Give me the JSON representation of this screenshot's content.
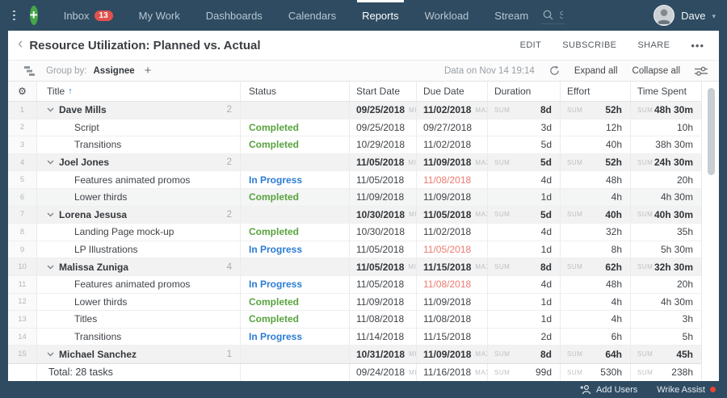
{
  "nav": {
    "items": [
      {
        "label": "Inbox",
        "badge": "13",
        "active": false
      },
      {
        "label": "My Work",
        "active": false
      },
      {
        "label": "Dashboards",
        "active": false
      },
      {
        "label": "Calendars",
        "active": false
      },
      {
        "label": "Reports",
        "active": true
      },
      {
        "label": "Workload",
        "active": false
      },
      {
        "label": "Stream",
        "active": false
      }
    ],
    "search_placeholder": "Search",
    "user_name": "Dave"
  },
  "header": {
    "back": "‹",
    "title": "Resource Utilization: Planned vs. Actual",
    "actions": [
      {
        "label": "EDIT"
      },
      {
        "label": "SUBSCRIBE"
      },
      {
        "label": "SHARE"
      }
    ],
    "more": "•••"
  },
  "toolbar": {
    "group_by_label": "Group by:",
    "group_by_value": "Assignee",
    "add_group": "+",
    "data_on": "Data on Nov 14 19:14",
    "expand_all": "Expand all",
    "collapse_all": "Collapse all"
  },
  "table": {
    "gear": "⚙",
    "sort_arrow": "↑",
    "columns": [
      "Title",
      "Status",
      "Start Date",
      "Due Date",
      "Duration",
      "Effort",
      "Time Spent"
    ],
    "tags": {
      "min": "MIN",
      "max": "MAX",
      "sum": "SUM"
    },
    "statuses": {
      "completed": "Completed",
      "inprogress": "In Progress"
    },
    "rows": [
      {
        "n": "1",
        "type": "g",
        "title": "Dave Mills",
        "count": "2",
        "start": "09/25/2018",
        "due": "11/02/2018",
        "dur": "8d",
        "eff": "52h",
        "time": "48h 30m"
      },
      {
        "n": "2",
        "type": "t",
        "title": "Script",
        "status": "completed",
        "start": "09/25/2018",
        "due": "09/27/2018",
        "dur": "3d",
        "eff": "12h",
        "time": "10h"
      },
      {
        "n": "3",
        "type": "t",
        "title": "Transitions",
        "status": "completed",
        "start": "10/29/2018",
        "due": "11/02/2018",
        "dur": "5d",
        "eff": "40h",
        "time": "38h 30m"
      },
      {
        "n": "4",
        "type": "g",
        "title": "Joel Jones",
        "count": "2",
        "start": "11/05/2018",
        "due": "11/09/2018",
        "dur": "5d",
        "eff": "52h",
        "time": "24h 30m"
      },
      {
        "n": "5",
        "type": "t",
        "title": "Features animated promos",
        "status": "inprogress",
        "start": "11/05/2018",
        "due": "11/08/2018",
        "late": true,
        "dur": "4d",
        "eff": "48h",
        "time": "20h"
      },
      {
        "n": "6",
        "type": "t",
        "hl": true,
        "title": "Lower thirds",
        "status": "completed",
        "start": "11/09/2018",
        "due": "11/09/2018",
        "dur": "1d",
        "eff": "4h",
        "time": "4h 30m"
      },
      {
        "n": "7",
        "type": "g",
        "title": "Lorena Jesusa",
        "count": "2",
        "start": "10/30/2018",
        "due": "11/05/2018",
        "dur": "5d",
        "eff": "40h",
        "time": "40h 30m"
      },
      {
        "n": "8",
        "type": "t",
        "title": "Landing Page mock-up",
        "status": "completed",
        "start": "10/30/2018",
        "due": "11/02/2018",
        "dur": "4d",
        "eff": "32h",
        "time": "35h"
      },
      {
        "n": "9",
        "type": "t",
        "title": "LP Illustrations",
        "status": "inprogress",
        "start": "11/05/2018",
        "due": "11/05/2018",
        "late": true,
        "dur": "1d",
        "eff": "8h",
        "time": "5h 30m"
      },
      {
        "n": "10",
        "type": "g",
        "title": "Malissa Zuniga",
        "count": "4",
        "start": "11/05/2018",
        "due": "11/15/2018",
        "dur": "8d",
        "eff": "62h",
        "time": "32h 30m"
      },
      {
        "n": "11",
        "type": "t",
        "title": "Features animated promos",
        "status": "inprogress",
        "start": "11/05/2018",
        "due": "11/08/2018",
        "late": true,
        "dur": "4d",
        "eff": "48h",
        "time": "20h"
      },
      {
        "n": "12",
        "type": "t",
        "title": "Lower thirds",
        "status": "completed",
        "start": "11/09/2018",
        "due": "11/09/2018",
        "dur": "1d",
        "eff": "4h",
        "time": "4h 30m"
      },
      {
        "n": "13",
        "type": "t",
        "title": "Titles",
        "status": "completed",
        "start": "11/08/2018",
        "due": "11/08/2018",
        "dur": "1d",
        "eff": "4h",
        "time": "3h"
      },
      {
        "n": "14",
        "type": "t",
        "title": "Transitions",
        "status": "inprogress",
        "start": "11/14/2018",
        "due": "11/15/2018",
        "dur": "2d",
        "eff": "6h",
        "time": "5h"
      },
      {
        "n": "15",
        "type": "g",
        "title": "Michael Sanchez",
        "count": "1",
        "start": "10/31/2018",
        "due": "11/09/2018",
        "dur": "8d",
        "eff": "64h",
        "time": "45h"
      }
    ],
    "total": {
      "type": "total",
      "title": "Total: 28 tasks",
      "start": "09/24/2018",
      "due": "11/16/2018",
      "dur": "99d",
      "eff": "530h",
      "time": "238h"
    }
  },
  "footer": {
    "add_users": "Add Users",
    "assist": "Wrike Assist"
  }
}
